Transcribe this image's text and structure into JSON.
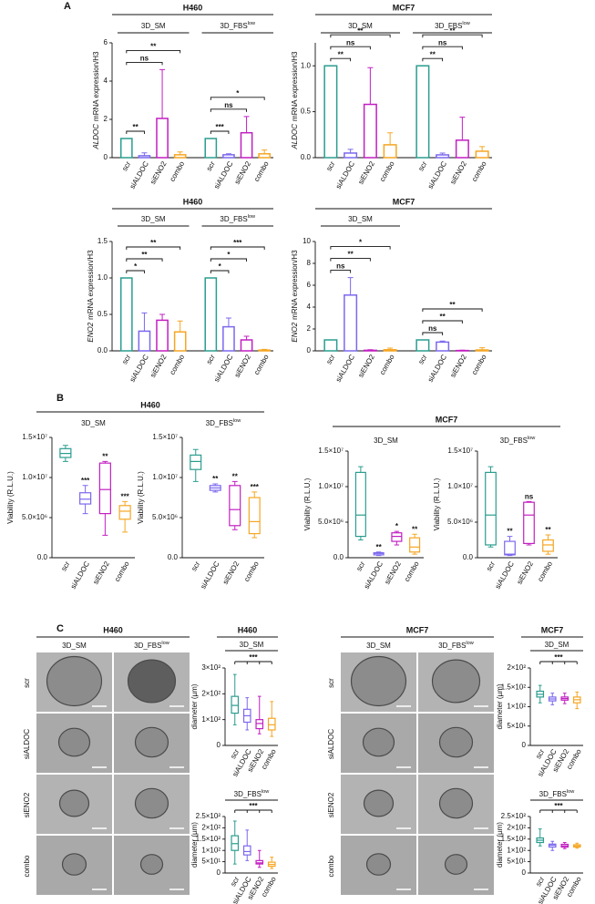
{
  "panel_labels": [
    "A",
    "B",
    "C"
  ],
  "chart_data": [
    {
      "type": "bar",
      "title": "H460",
      "ylabel": [
        "ALDOC",
        "mRNA expression/H3"
      ],
      "ylim": [
        0,
        6
      ],
      "yticks": [
        0,
        2,
        4,
        6
      ],
      "categories": [
        "scr",
        "siALDOC",
        "siENO2",
        "combo"
      ],
      "colors": [
        "#2a9d8f",
        "#7b68ee",
        "#c21fc2",
        "#f5a623"
      ],
      "groups": [
        {
          "name": "3D_SM",
          "values": [
            1,
            0.1,
            2.05,
            0.15
          ],
          "errors": [
            0,
            0.15,
            2.55,
            0.15
          ],
          "significance": [
            "**",
            "ns",
            "**"
          ]
        },
        {
          "name": {
            "text": "3D_FBS",
            "sup": "low"
          },
          "values": [
            1,
            0.15,
            1.3,
            0.2
          ],
          "errors": [
            0,
            0.05,
            0.85,
            0.2
          ],
          "significance": [
            "***",
            "ns",
            "*"
          ]
        }
      ]
    },
    {
      "type": "bar",
      "title": "MCF7",
      "ylabel": [
        "ALDOC",
        "mRNA expression/H3"
      ],
      "ylim": [
        0,
        1.25
      ],
      "yticks": [
        {
          "value": 0,
          "label": "0.0"
        },
        0.5,
        {
          "value": 1,
          "label": "1.0"
        }
      ],
      "categories": [
        "scr",
        "siALDOC",
        "siENO2",
        "combo"
      ],
      "colors": [
        "#2a9d8f",
        "#7b68ee",
        "#c21fc2",
        "#f5a623"
      ],
      "groups": [
        {
          "name": "3D_SM",
          "values": [
            1,
            0.05,
            0.58,
            0.14
          ],
          "errors": [
            0,
            0.04,
            0.4,
            0.13
          ],
          "significance": [
            "**",
            "ns",
            "**"
          ]
        },
        {
          "name": {
            "text": "3D_FBS",
            "sup": "low"
          },
          "values": [
            1,
            0.03,
            0.19,
            0.07
          ],
          "errors": [
            0,
            0.02,
            0.25,
            0.05
          ],
          "significance": [
            "**",
            "ns",
            "**"
          ]
        }
      ]
    },
    {
      "type": "bar",
      "title": "H460",
      "ylabel": [
        "ENO2",
        "mRNA expression/H3"
      ],
      "ylim": [
        0,
        1.5
      ],
      "yticks": [
        {
          "value": 0,
          "label": "0.0"
        },
        0.5,
        {
          "value": 1,
          "label": "1.0"
        },
        1.5
      ],
      "categories": [
        "scr",
        "siALDOC",
        "siENO2",
        "combo"
      ],
      "colors": [
        "#2a9d8f",
        "#7b68ee",
        "#c21fc2",
        "#f5a623"
      ],
      "groups": [
        {
          "name": "3D_SM",
          "values": [
            1,
            0.27,
            0.42,
            0.26
          ],
          "errors": [
            0,
            0.25,
            0.08,
            0.15
          ],
          "significance": [
            "*",
            "**",
            "**"
          ]
        },
        {
          "name": {
            "text": "3D_FBS",
            "sup": "low"
          },
          "values": [
            1,
            0.33,
            0.15,
            0.01
          ],
          "errors": [
            0,
            0.12,
            0.05,
            0.01
          ],
          "significance": [
            "*",
            "*",
            "***"
          ]
        }
      ]
    },
    {
      "type": "bar",
      "title": "MCF7",
      "ylabel": [
        "ENO2",
        "mRNA expression/H3"
      ],
      "ylim": [
        0,
        10
      ],
      "yticks": [
        0,
        2,
        4,
        6,
        8,
        10
      ],
      "categories": [
        "scr",
        "siALDOC",
        "siENO2",
        "combo"
      ],
      "colors": [
        "#2a9d8f",
        "#7b68ee",
        "#c21fc2",
        "#f5a623"
      ],
      "groups": [
        {
          "name": "3D_SM",
          "values": [
            1,
            5.1,
            0.05,
            0.1
          ],
          "errors": [
            0,
            1.6,
            0.05,
            0.15
          ],
          "significance": [
            "ns",
            "**",
            "*"
          ]
        },
        {
          "name": null,
          "values": [
            1,
            0.8,
            0.03,
            0.08
          ],
          "errors": [
            0,
            0.1,
            0.03,
            0.2
          ],
          "significance": [
            "ns",
            "**",
            "**"
          ]
        }
      ]
    },
    {
      "type": "box",
      "title": "H460",
      "subtitle": "3D_SM",
      "ylabel": "Viability (R.L.U.)",
      "ylim": [
        0,
        15000000
      ],
      "yticks": [
        {
          "value": 0,
          "label": "0.0"
        },
        {
          "value": 5000000,
          "label": "5.0×10⁶"
        },
        {
          "value": 10000000,
          "label": "1.0×10⁷"
        },
        {
          "value": 15000000,
          "label": "1.5×10⁷"
        }
      ],
      "categories": [
        "scr",
        "siALDOC",
        "siENO2",
        "combo"
      ],
      "colors": [
        "#2a9d8f",
        "#7b68ee",
        "#c21fc2",
        "#f5a623"
      ],
      "values": [
        [
          12000000,
          12500000,
          13000000,
          13600000,
          14000000
        ],
        [
          5500000,
          6700000,
          7300000,
          8100000,
          9000000
        ],
        [
          2800000,
          5500000,
          8500000,
          11800000,
          12000000
        ],
        [
          3200000,
          4800000,
          5800000,
          6500000,
          7000000
        ]
      ],
      "significance": [
        null,
        "***",
        "**",
        "***"
      ]
    },
    {
      "type": "box",
      "subtitle": {
        "text": "3D_FBS",
        "sup": "low"
      },
      "ylabel": "Viability (R.L.U.)",
      "ylim": [
        0,
        15000000
      ],
      "yticks": [
        {
          "value": 0,
          "label": "0.0"
        },
        {
          "value": 5000000,
          "label": "5.0×10⁶"
        },
        {
          "value": 10000000,
          "label": "1.0×10⁷"
        },
        {
          "value": 15000000,
          "label": "1.5×10⁷"
        }
      ],
      "categories": [
        "scr",
        "siALDOC",
        "siENO2",
        "combo"
      ],
      "colors": [
        "#2a9d8f",
        "#7b68ee",
        "#c21fc2",
        "#f5a623"
      ],
      "values": [
        [
          9500000,
          11000000,
          12000000,
          12800000,
          13500000
        ],
        [
          8200000,
          8400000,
          8700000,
          9000000,
          9200000
        ],
        [
          3500000,
          4000000,
          6000000,
          9000000,
          9500000
        ],
        [
          2500000,
          3000000,
          4500000,
          7500000,
          8200000
        ]
      ],
      "significance": [
        null,
        "**",
        "**",
        "***"
      ]
    },
    {
      "type": "box",
      "title": "MCF7",
      "subtitle": "3D_SM",
      "ylabel": "Viability (R.L.U.)",
      "ylim": [
        0,
        15000000
      ],
      "yticks": [
        {
          "value": 0,
          "label": "0.0"
        },
        {
          "value": 5000000,
          "label": "5.0×10⁶"
        },
        {
          "value": 10000000,
          "label": "1.0×10⁷"
        },
        {
          "value": 15000000,
          "label": "1.5×10⁷"
        }
      ],
      "categories": [
        "scr",
        "siALDOC",
        "siENO2",
        "combo"
      ],
      "colors": [
        "#2a9d8f",
        "#7b68ee",
        "#c21fc2",
        "#f5a623"
      ],
      "values": [
        [
          2500000,
          3000000,
          6000000,
          12000000,
          12800000
        ],
        [
          300000,
          400000,
          600000,
          700000,
          800000
        ],
        [
          1800000,
          2300000,
          3000000,
          3500000,
          3700000
        ],
        [
          500000,
          800000,
          1500000,
          2800000,
          3300000
        ]
      ],
      "significance": [
        null,
        "**",
        "*",
        "**"
      ]
    },
    {
      "type": "box",
      "subtitle": {
        "text": "3D_FBS",
        "sup": "low"
      },
      "ylabel": "Viability (R.L.U.)",
      "ylim": [
        0,
        15000000
      ],
      "yticks": [
        {
          "value": 0,
          "label": "0.0"
        },
        {
          "value": 5000000,
          "label": "5.0×10⁶"
        },
        {
          "value": 10000000,
          "label": "1.0×10⁷"
        },
        {
          "value": 15000000,
          "label": "1.5×10⁷"
        }
      ],
      "categories": [
        "scr",
        "siALDOC",
        "siENO2",
        "combo"
      ],
      "colors": [
        "#2a9d8f",
        "#7b68ee",
        "#c21fc2",
        "#f5a623"
      ],
      "values": [
        [
          1500000,
          1800000,
          6000000,
          12000000,
          12800000
        ],
        [
          300000,
          400000,
          500000,
          2300000,
          3000000
        ],
        [
          1800000,
          2000000,
          6000000,
          7800000,
          7900000
        ],
        [
          500000,
          900000,
          1800000,
          2500000,
          3200000
        ]
      ],
      "significance": [
        null,
        "**",
        "ns",
        "**"
      ]
    },
    {
      "type": "box",
      "title": "H460",
      "subtitle": "3D_SM",
      "ylabel": "diameter (µm)",
      "ylim": [
        0,
        300
      ],
      "yticks": [
        0,
        {
          "value": 100,
          "label": "1×10²"
        },
        {
          "value": 200,
          "label": "2×10²"
        },
        {
          "value": 300,
          "label": "3×10²"
        }
      ],
      "categories": [
        "scr",
        "siALDOC",
        "siENO2",
        "combo"
      ],
      "colors": [
        "#2a9d8f",
        "#7b68ee",
        "#c21fc2",
        "#f5a623"
      ],
      "values": [
        [
          80,
          125,
          155,
          190,
          275
        ],
        [
          60,
          90,
          115,
          140,
          185
        ],
        [
          45,
          65,
          85,
          100,
          190
        ],
        [
          35,
          60,
          80,
          105,
          170
        ]
      ],
      "bracket": "***"
    },
    {
      "type": "box",
      "subtitle": {
        "text": "3D_FBS",
        "sup": "low"
      },
      "ylabel": "diameter (µm)",
      "ylim": [
        0,
        250
      ],
      "yticks": [
        0,
        {
          "value": 50,
          "label": "5×10¹"
        },
        {
          "value": 100,
          "label": "1×10²"
        },
        {
          "value": 150,
          "label": "1.5×10²"
        },
        {
          "value": 200,
          "label": "2×10²"
        },
        {
          "value": 250,
          "label": "2.5×10²"
        }
      ],
      "categories": [
        "scr",
        "siALDOC",
        "siENO2",
        "combo"
      ],
      "colors": [
        "#2a9d8f",
        "#7b68ee",
        "#c21fc2",
        "#f5a623"
      ],
      "values": [
        [
          40,
          100,
          130,
          165,
          230
        ],
        [
          55,
          80,
          95,
          120,
          190
        ],
        [
          25,
          40,
          45,
          55,
          100
        ],
        [
          20,
          30,
          38,
          48,
          70
        ]
      ],
      "bracket": "***"
    },
    {
      "type": "box",
      "title": "MCF7",
      "subtitle": "3D_SM",
      "ylabel": "diameter (µm)",
      "ylim": [
        0,
        200
      ],
      "yticks": [
        0,
        {
          "value": 50,
          "label": "5×10¹"
        },
        {
          "value": 100,
          "label": "1×10²"
        },
        {
          "value": 150,
          "label": "1.5×10²"
        },
        {
          "value": 200,
          "label": "2×10²"
        }
      ],
      "categories": [
        "scr",
        "siALDOC",
        "siENO2",
        "combo"
      ],
      "colors": [
        "#2a9d8f",
        "#7b68ee",
        "#c21fc2",
        "#f5a623"
      ],
      "values": [
        [
          110,
          125,
          132,
          140,
          155
        ],
        [
          105,
          115,
          120,
          125,
          135
        ],
        [
          108,
          117,
          121,
          125,
          135
        ],
        [
          95,
          110,
          118,
          125,
          138
        ]
      ],
      "bracket": "***"
    },
    {
      "type": "box",
      "subtitle": {
        "text": "3D_FBS",
        "sup": "low"
      },
      "ylabel": "diameter (µm)",
      "ylim": [
        0,
        250
      ],
      "yticks": [
        0,
        {
          "value": 50,
          "label": "5×10¹"
        },
        {
          "value": 100,
          "label": "1×10²"
        },
        {
          "value": 150,
          "label": "1.5×10²"
        },
        {
          "value": 200,
          "label": "2×10²"
        },
        {
          "value": 250,
          "label": "2.5×10²"
        }
      ],
      "categories": [
        "scr",
        "siALDOC",
        "siENO2",
        "combo"
      ],
      "colors": [
        "#2a9d8f",
        "#7b68ee",
        "#c21fc2",
        "#f5a623"
      ],
      "values": [
        [
          120,
          135,
          145,
          155,
          195
        ],
        [
          100,
          115,
          123,
          128,
          140
        ],
        [
          108,
          115,
          120,
          127,
          135
        ],
        [
          110,
          115,
          120,
          125,
          132
        ]
      ],
      "bracket": "***"
    }
  ],
  "image_grids": [
    {
      "title": "H460",
      "columns": [
        "3D_SM",
        {
          "text": "3D_FBS",
          "sup": "low"
        }
      ],
      "rows": [
        "scr",
        "siALDOC",
        "siENO2",
        "combo"
      ]
    },
    {
      "title": "MCF7",
      "columns": [
        "3D_SM",
        {
          "text": "3D_FBS",
          "sup": "low"
        }
      ],
      "rows": [
        "scr",
        "siALDOC",
        "siENO2",
        "combo"
      ]
    }
  ]
}
